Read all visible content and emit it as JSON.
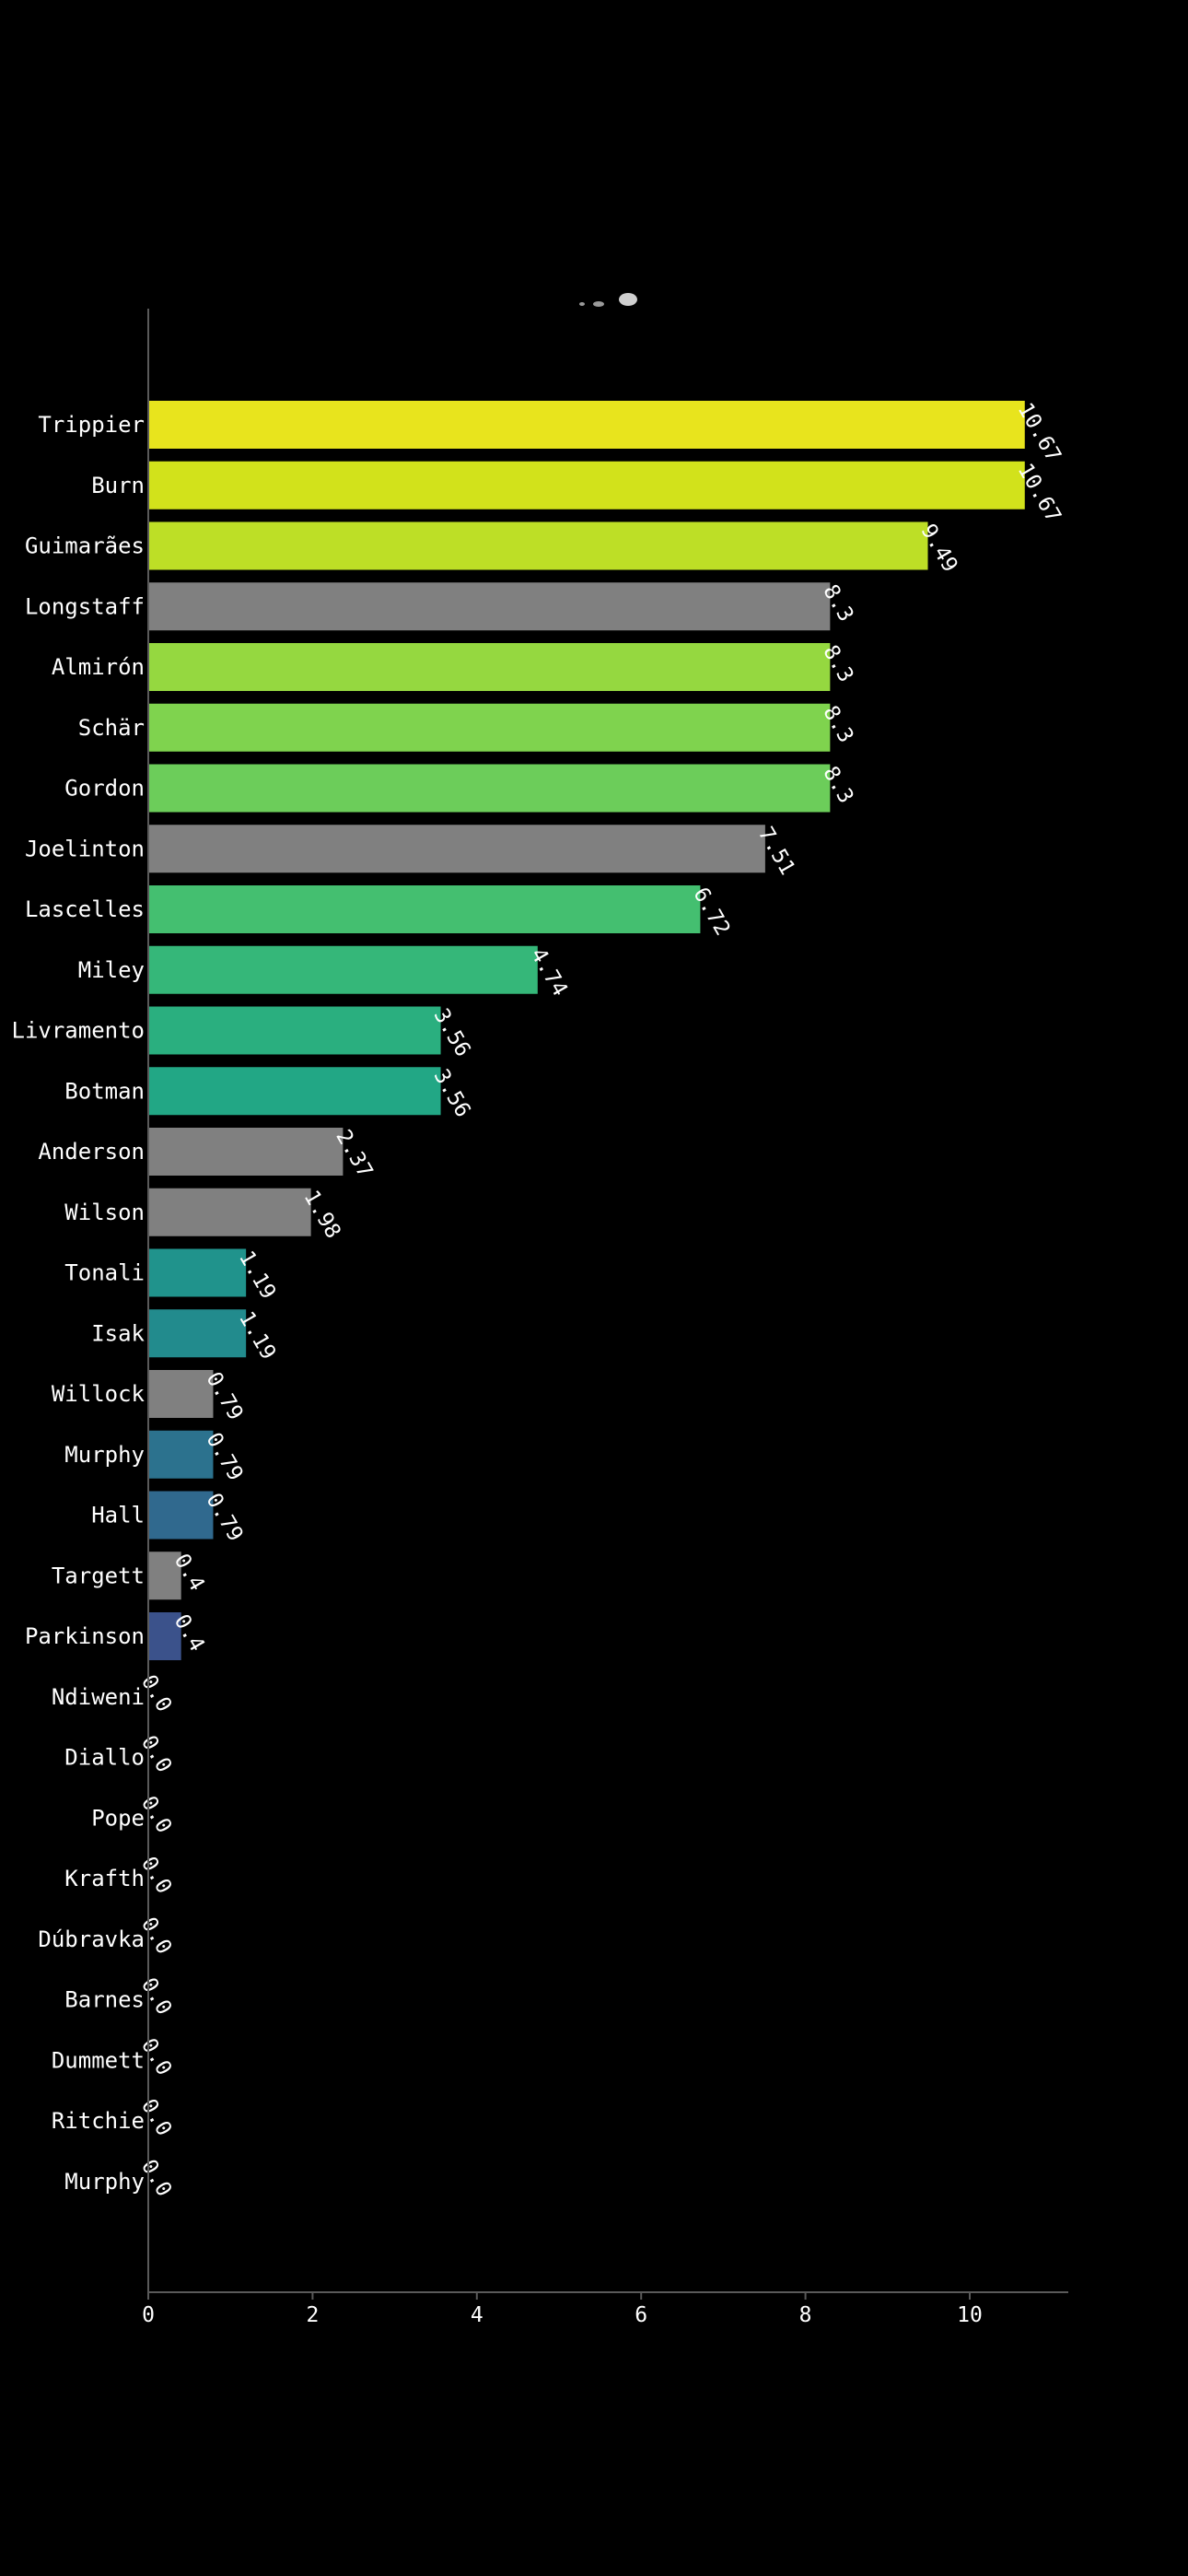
{
  "chart_data": {
    "type": "bar",
    "orientation": "horizontal",
    "categories": [
      "Trippier",
      "Burn",
      "Guimarães",
      "Longstaff",
      "Almirón",
      "Schär",
      "Gordon",
      "Joelinton",
      "Lascelles",
      "Miley",
      "Livramento",
      "Botman",
      "Anderson",
      "Wilson",
      "Tonali",
      "Isak",
      "Willock",
      "Murphy",
      "Hall",
      "Targett",
      "Parkinson",
      "Ndiweni",
      "Diallo",
      "Pope",
      "Krafth",
      "Dúbravka",
      "Barnes",
      "Dummett",
      "Ritchie",
      "Murphy"
    ],
    "values": [
      10.67,
      10.67,
      9.49,
      8.3,
      8.3,
      8.3,
      8.3,
      7.51,
      6.72,
      4.74,
      3.56,
      3.56,
      2.37,
      1.98,
      1.19,
      1.19,
      0.79,
      0.79,
      0.79,
      0.4,
      0.4,
      0.0,
      0.0,
      0.0,
      0.0,
      0.0,
      0.0,
      0.0,
      0.0,
      0.0
    ],
    "value_labels": [
      "10.67",
      "10.67",
      "9.49",
      "8.3",
      "8.3",
      "8.3",
      "8.3",
      "7.51",
      "6.72",
      "4.74",
      "3.56",
      "3.56",
      "2.37",
      "1.98",
      "1.19",
      "1.19",
      "0.79",
      "0.79",
      "0.79",
      "0.4",
      "0.4",
      "0.0",
      "0.0",
      "0.0",
      "0.0",
      "0.0",
      "0.0",
      "0.0",
      "0.0",
      "0.0"
    ],
    "colors": [
      "#e8e41d",
      "#d2e21b",
      "#bddf26",
      "#808080",
      "#95d840",
      "#7fd34e",
      "#6ccd5a",
      "#808080",
      "#44bf70",
      "#35b779",
      "#2aaf7f",
      "#22a785",
      "#808080",
      "#808080",
      "#20938c",
      "#228b8d",
      "#808080",
      "#2c728e",
      "#30698e",
      "#808080",
      "#3b528b",
      "#433e85",
      "#482878",
      "#472d7b",
      "#471365",
      "#470d60",
      "#46085c",
      "#450457",
      "#440154",
      "#440154"
    ],
    "xlim": [
      0,
      11.2
    ],
    "xticks": [
      0,
      2,
      4,
      6,
      8,
      10
    ],
    "xtick_labels": [
      "0",
      "2",
      "4",
      "6",
      "8",
      "10"
    ],
    "title": "",
    "xlabel": "",
    "ylabel": "",
    "grid": false
  }
}
